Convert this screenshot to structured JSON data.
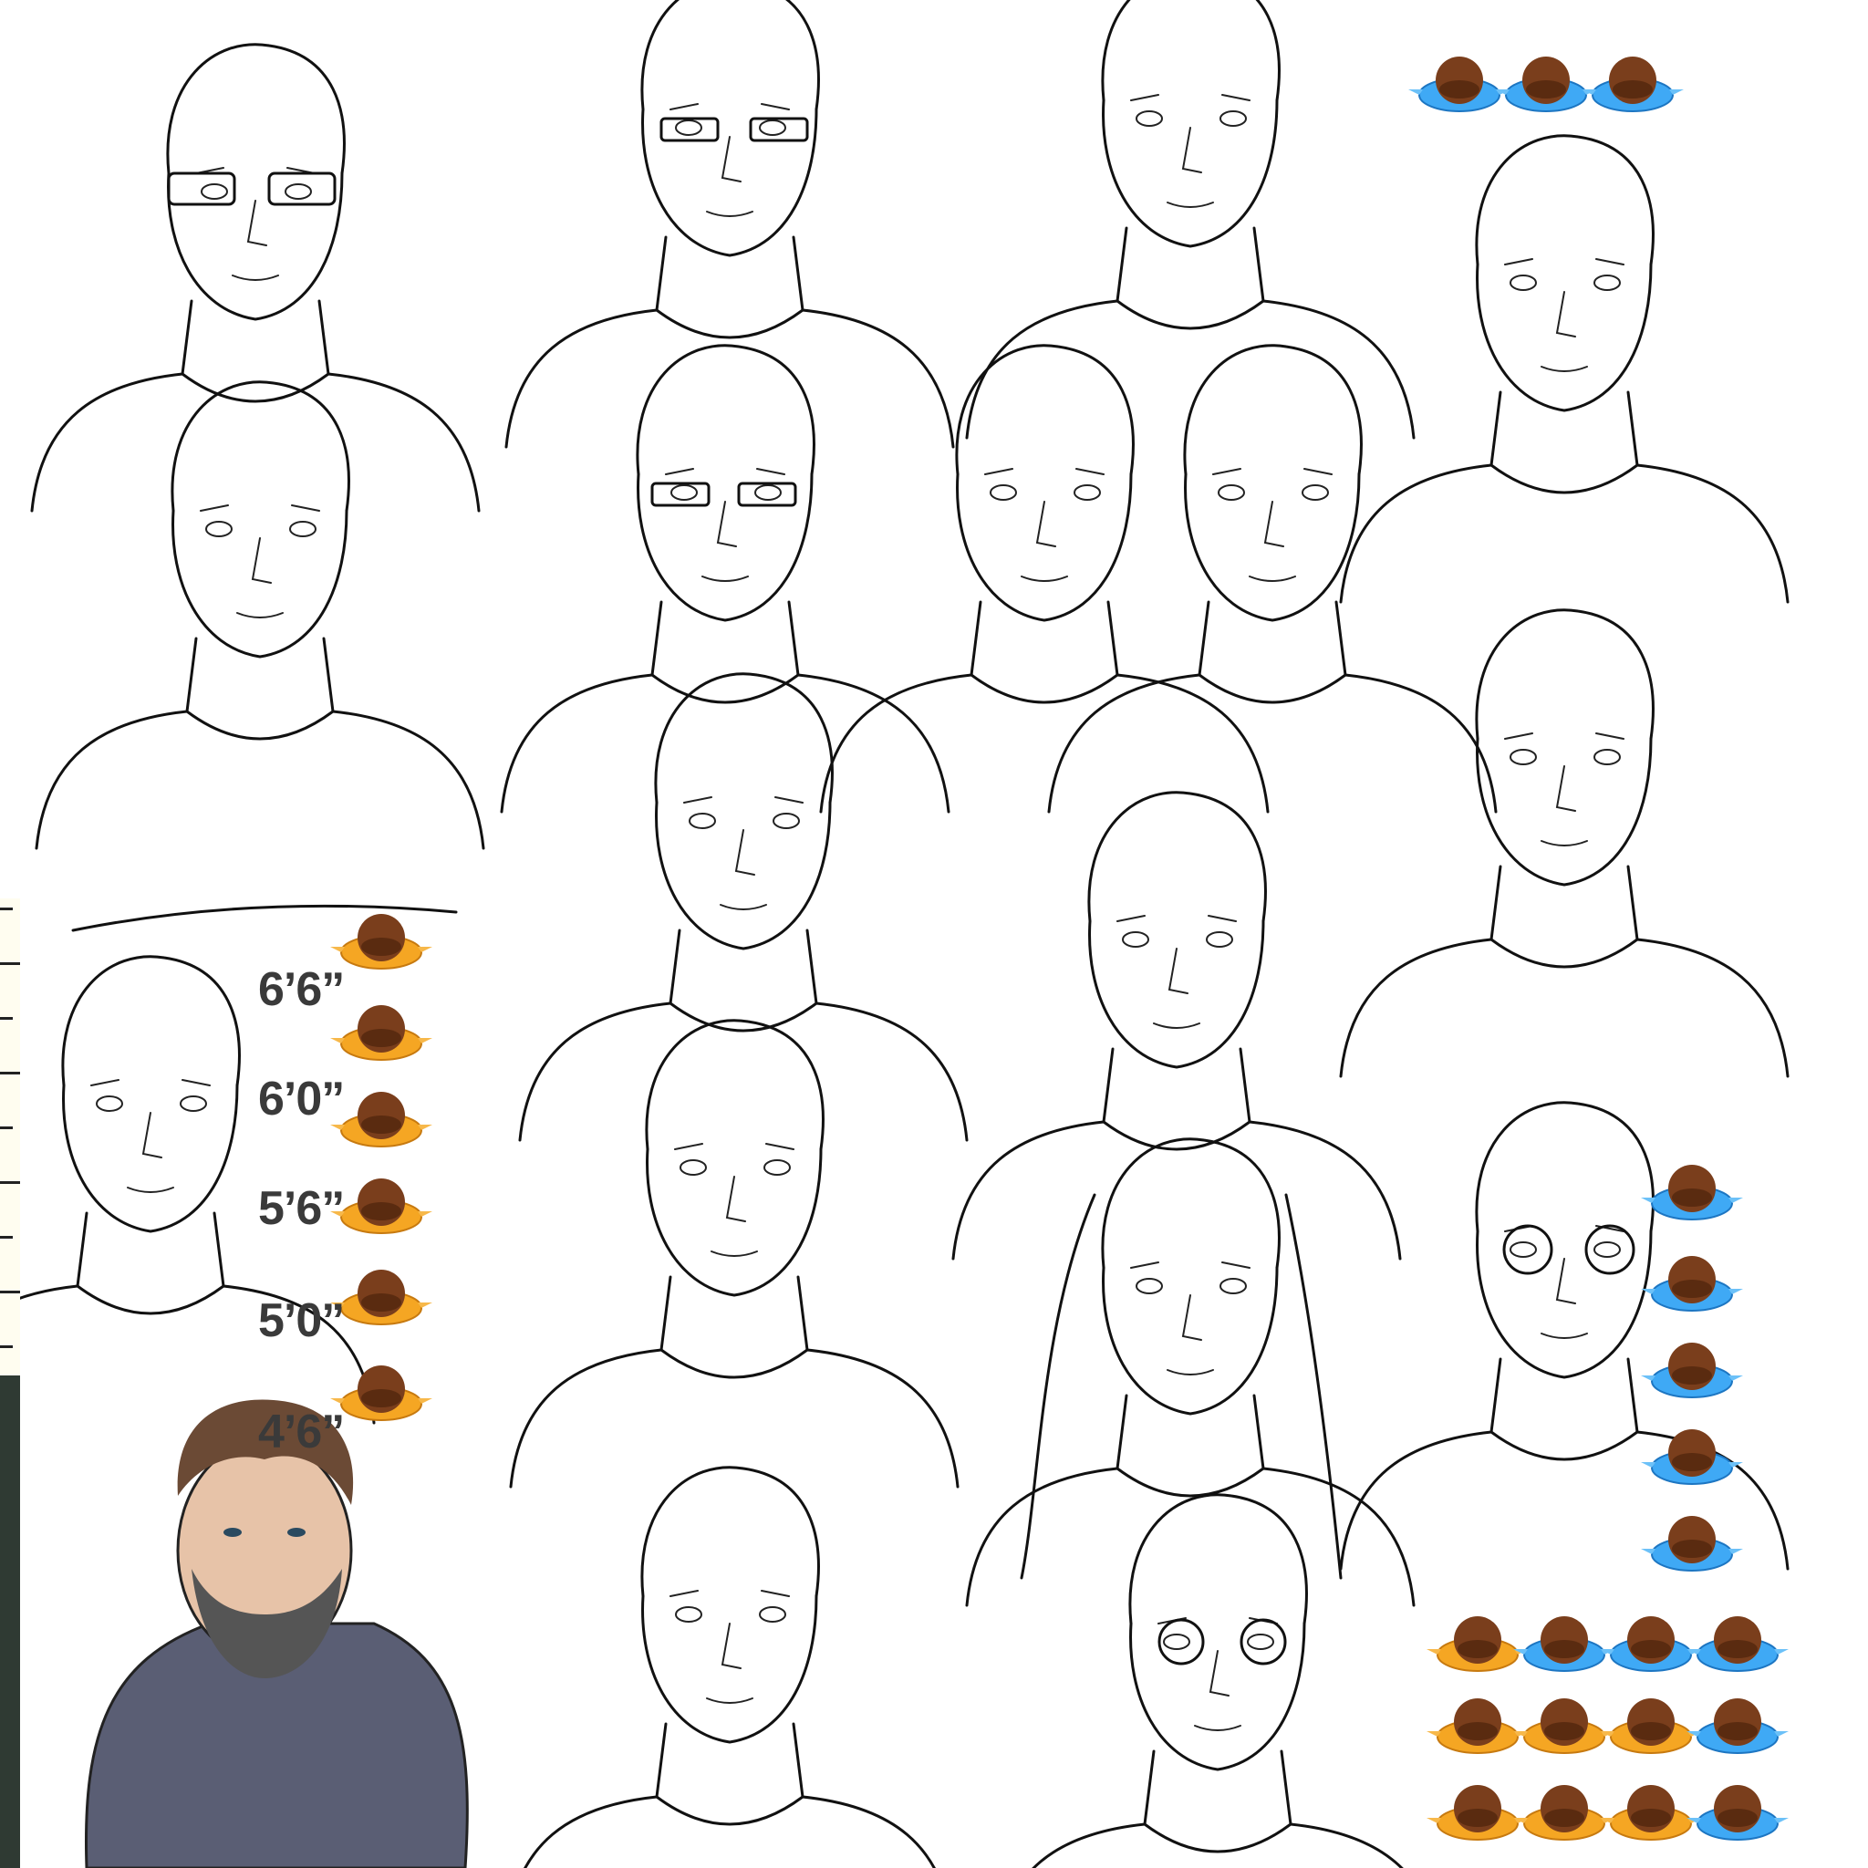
{
  "sheet": {
    "background": "#ffffff",
    "line_color": "#111111",
    "height_labels": [
      "6’6”",
      "6’0”",
      "5’6”",
      "5’0”",
      "4’6”"
    ],
    "token_colors": {
      "orange_base": "#f5a623",
      "blue_base": "#3fa9f5",
      "hair_brown": "#7a3e1c",
      "hair_dark": "#4a2a3a"
    },
    "colored_portrait": {
      "shirt_color": "#5a5e74",
      "hair_color": "#6b4a35",
      "beard_color": "#555"
    }
  }
}
